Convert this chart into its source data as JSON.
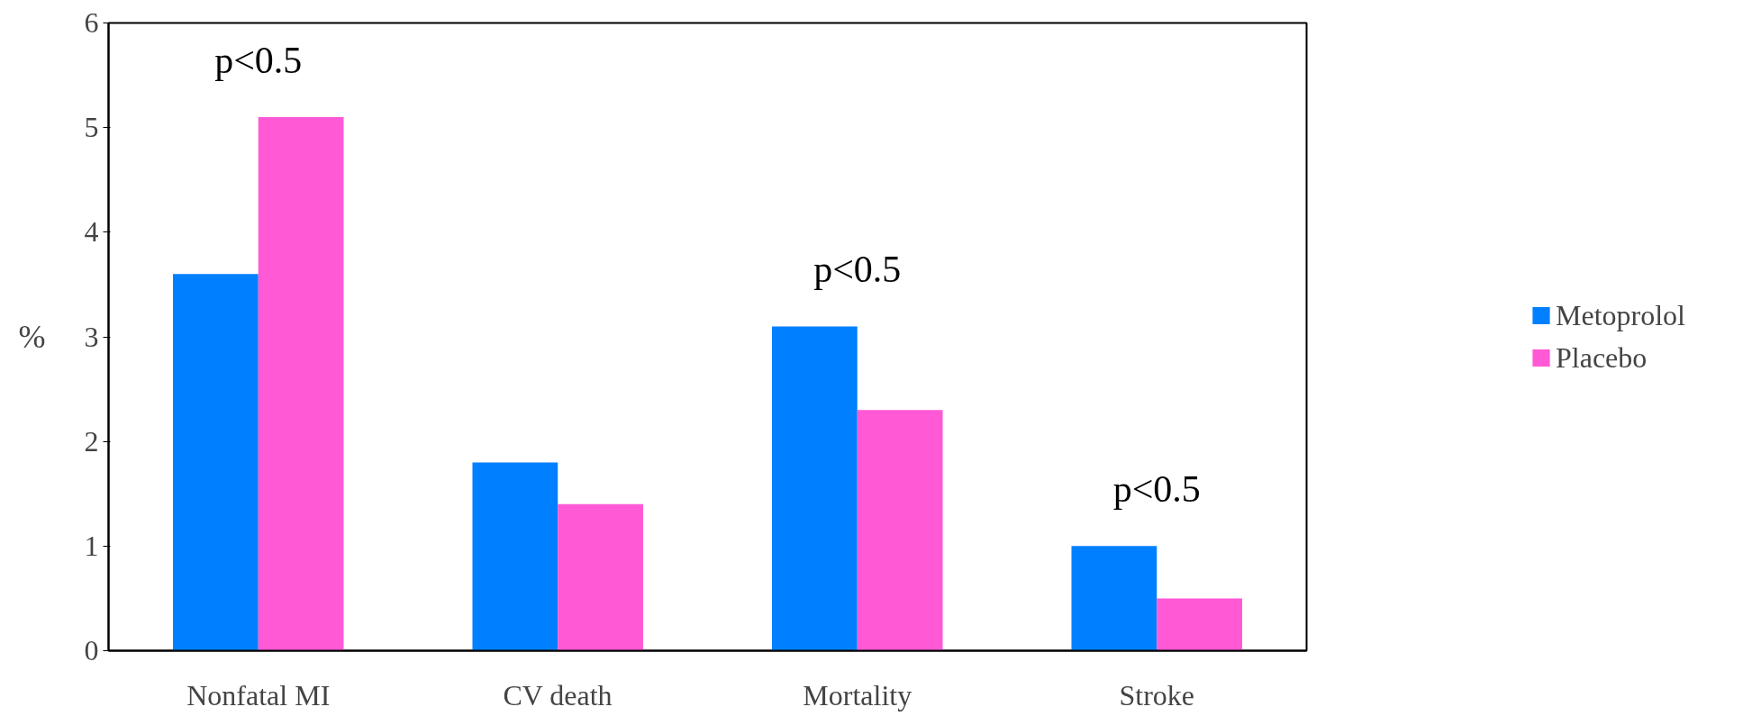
{
  "chart_data": {
    "type": "bar",
    "ylabel": "%",
    "categories": [
      "Nonfatal MI",
      "CV death",
      "Mortality",
      "Stroke"
    ],
    "series": [
      {
        "name": "Metoprolol",
        "color": "#0080ff",
        "values": [
          3.6,
          1.8,
          3.1,
          1.0
        ]
      },
      {
        "name": "Placebo",
        "color": "#ff59d6",
        "values": [
          5.1,
          1.4,
          2.3,
          0.5
        ]
      }
    ],
    "annotations": [
      {
        "text": "p<0.5",
        "x": "Nonfatal MI",
        "y": 5.1
      },
      {
        "text": "p<0.5",
        "x": "Mortality",
        "y": 3.1
      },
      {
        "text": "p<0.5",
        "x": "Stroke",
        "y": 1.0
      }
    ],
    "ylim": [
      0,
      6
    ],
    "yticks": [
      0,
      1,
      2,
      3,
      4,
      5,
      6
    ],
    "grid": false,
    "legend": "right"
  }
}
